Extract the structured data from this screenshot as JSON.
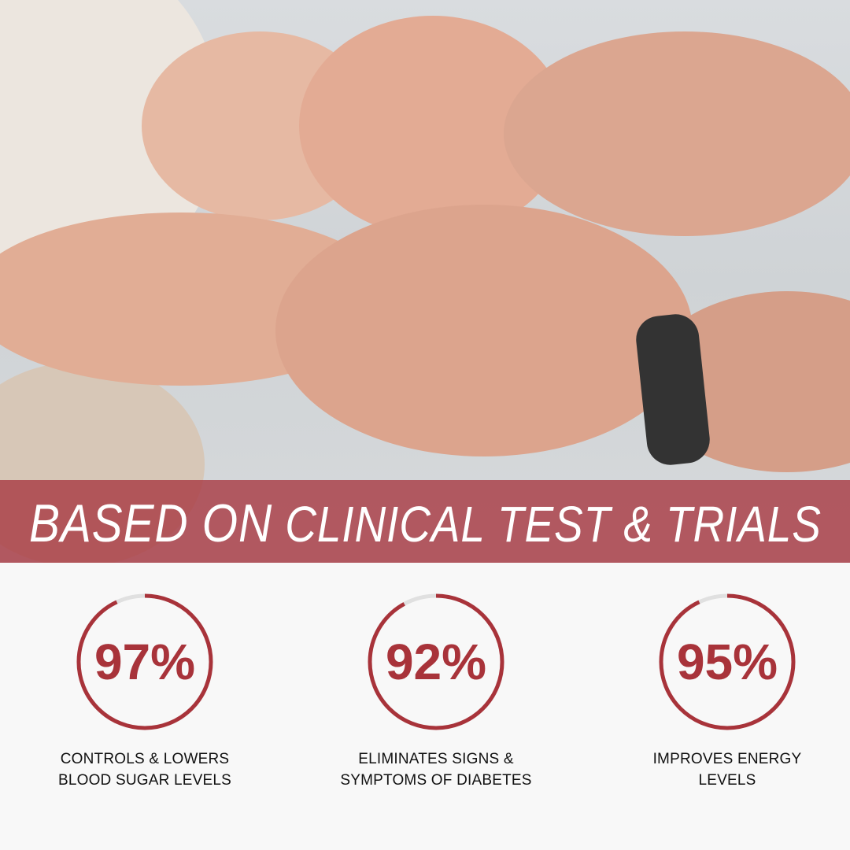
{
  "banner": {
    "title_part1": "BASED ON",
    "title_part2": "CLINICAL TEST & TRIALS"
  },
  "colors": {
    "accent": "#a8333a",
    "banner": "#b35a60",
    "ring_track": "#e0e0e0"
  },
  "stats": [
    {
      "value": 97,
      "value_label": "97%",
      "line1": "CONTROLS & LOWERS",
      "line2": "BLOOD SUGAR LEVELS"
    },
    {
      "value": 92,
      "value_label": "92%",
      "line1": "ELIMINATES SIGNS &",
      "line2": "SYMPTOMS OF DIABETES"
    },
    {
      "value": 95,
      "value_label": "95%",
      "line1": "IMPROVES ENERGY",
      "line2": "LEVELS"
    }
  ]
}
